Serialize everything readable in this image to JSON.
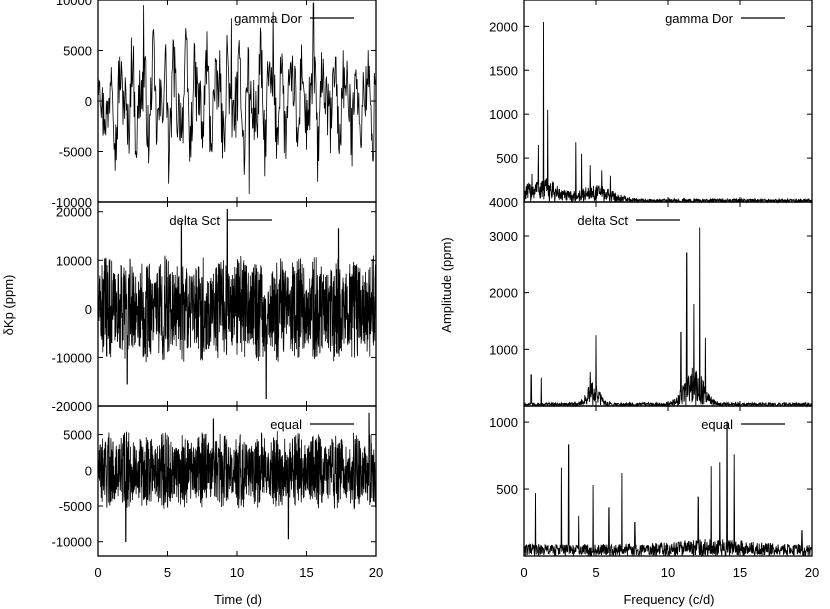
{
  "chart_data": [
    {
      "id": "left",
      "type": "line",
      "xlabel": "Time (d)",
      "ylabel": "δKp (ppm)",
      "xlim": [
        0,
        20
      ],
      "xticks": [
        0,
        5,
        10,
        15,
        20
      ],
      "xtick_labels": [
        "0",
        "5",
        "10",
        "15",
        "20"
      ],
      "panels": [
        {
          "name": "gamma-dor-light-curve",
          "legend": "gamma Dor",
          "ylim": [
            -10000,
            10000
          ],
          "yticks": [
            -10000,
            -5000,
            0,
            5000,
            10000
          ],
          "ytick_labels": [
            "-10000",
            "-5000",
            "0",
            "5000",
            "10000"
          ],
          "series_kind": "time-series",
          "approx_amplitude": 5000,
          "peak_values": [
            [
              3.3,
              9500
            ],
            [
              9.6,
              8200
            ],
            [
              10.9,
              -9200
            ],
            [
              12.6,
              8800
            ],
            [
              15.5,
              9700
            ],
            [
              5.1,
              -8200
            ],
            [
              15.8,
              -8000
            ]
          ]
        },
        {
          "name": "delta-sct-light-curve",
          "legend": "delta Sct",
          "ylim": [
            -20000,
            22000
          ],
          "yticks": [
            -20000,
            -10000,
            0,
            10000,
            20000
          ],
          "ytick_labels": [
            "-20000",
            "-10000",
            "0",
            "10000",
            "20000"
          ],
          "series_kind": "time-series",
          "approx_amplitude": 11000,
          "peak_values": [
            [
              9.3,
              20500
            ],
            [
              6.0,
              18000
            ],
            [
              12.1,
              -18500
            ],
            [
              2.1,
              -15500
            ],
            [
              17.3,
              16500
            ]
          ]
        },
        {
          "name": "equal-light-curve",
          "legend": "equal",
          "ylim": [
            -12000,
            9000
          ],
          "yticks": [
            -10000,
            -5000,
            0,
            5000
          ],
          "ytick_labels": [
            "-10000",
            "-5000",
            "0",
            "5000"
          ],
          "series_kind": "time-series",
          "approx_amplitude": 5500,
          "peak_values": [
            [
              2.0,
              -10000
            ],
            [
              13.7,
              -9600
            ],
            [
              19.5,
              8000
            ],
            [
              8.3,
              7200
            ]
          ]
        }
      ]
    },
    {
      "id": "right",
      "type": "line",
      "xlabel": "Frequency (c/d)",
      "ylabel": "Amplitude (ppm)",
      "xlim": [
        0,
        20
      ],
      "xticks": [
        0,
        5,
        10,
        15,
        20
      ],
      "xtick_labels": [
        "0",
        "5",
        "10",
        "15",
        "20"
      ],
      "panels": [
        {
          "name": "gamma-dor-spectrum",
          "legend": "gamma Dor",
          "ylim": [
            4000,
            2300
          ],
          "ylim_note": "axis labels as printed; panel baseline labelled 4000",
          "yticks": [
            4000,
            500,
            1000,
            1500,
            2000
          ],
          "ytick_labels": [
            "4000",
            "500",
            "1000",
            "1500",
            "2000"
          ],
          "tick_fracs": [
            0,
            0.2174,
            0.4348,
            0.6522,
            0.8696
          ],
          "peaks": [
            [
              0.55,
              320
            ],
            [
              1.0,
              650
            ],
            [
              1.35,
              2050
            ],
            [
              1.65,
              1050
            ],
            [
              3.6,
              680
            ],
            [
              4.0,
              550
            ],
            [
              4.6,
              420
            ],
            [
              5.4,
              360
            ],
            [
              6.0,
              300
            ]
          ]
        },
        {
          "name": "delta-sct-spectrum",
          "legend": "delta Sct",
          "ylim": [
            0,
            3600
          ],
          "yticks": [
            1000,
            2000,
            3000
          ],
          "ytick_labels": [
            "1000",
            "2000",
            "3000"
          ],
          "peaks": [
            [
              0.5,
              550
            ],
            [
              1.2,
              500
            ],
            [
              4.6,
              600
            ],
            [
              5.0,
              1250
            ],
            [
              10.9,
              1300
            ],
            [
              11.3,
              2700
            ],
            [
              11.8,
              1800
            ],
            [
              12.2,
              3150
            ],
            [
              12.6,
              1200
            ]
          ]
        },
        {
          "name": "equal-spectrum",
          "legend": "equal",
          "ylim": [
            0,
            1120
          ],
          "yticks": [
            500,
            1000
          ],
          "ytick_labels": [
            "500",
            "1000"
          ],
          "peaks": [
            [
              0.8,
              470
            ],
            [
              2.6,
              660
            ],
            [
              3.1,
              830
            ],
            [
              3.8,
              300
            ],
            [
              4.8,
              530
            ],
            [
              5.9,
              360
            ],
            [
              6.8,
              620
            ],
            [
              7.7,
              250
            ],
            [
              12.1,
              440
            ],
            [
              13.0,
              670
            ],
            [
              13.6,
              700
            ],
            [
              14.1,
              1000
            ],
            [
              14.6,
              760
            ],
            [
              19.3,
              190
            ]
          ]
        }
      ]
    }
  ]
}
